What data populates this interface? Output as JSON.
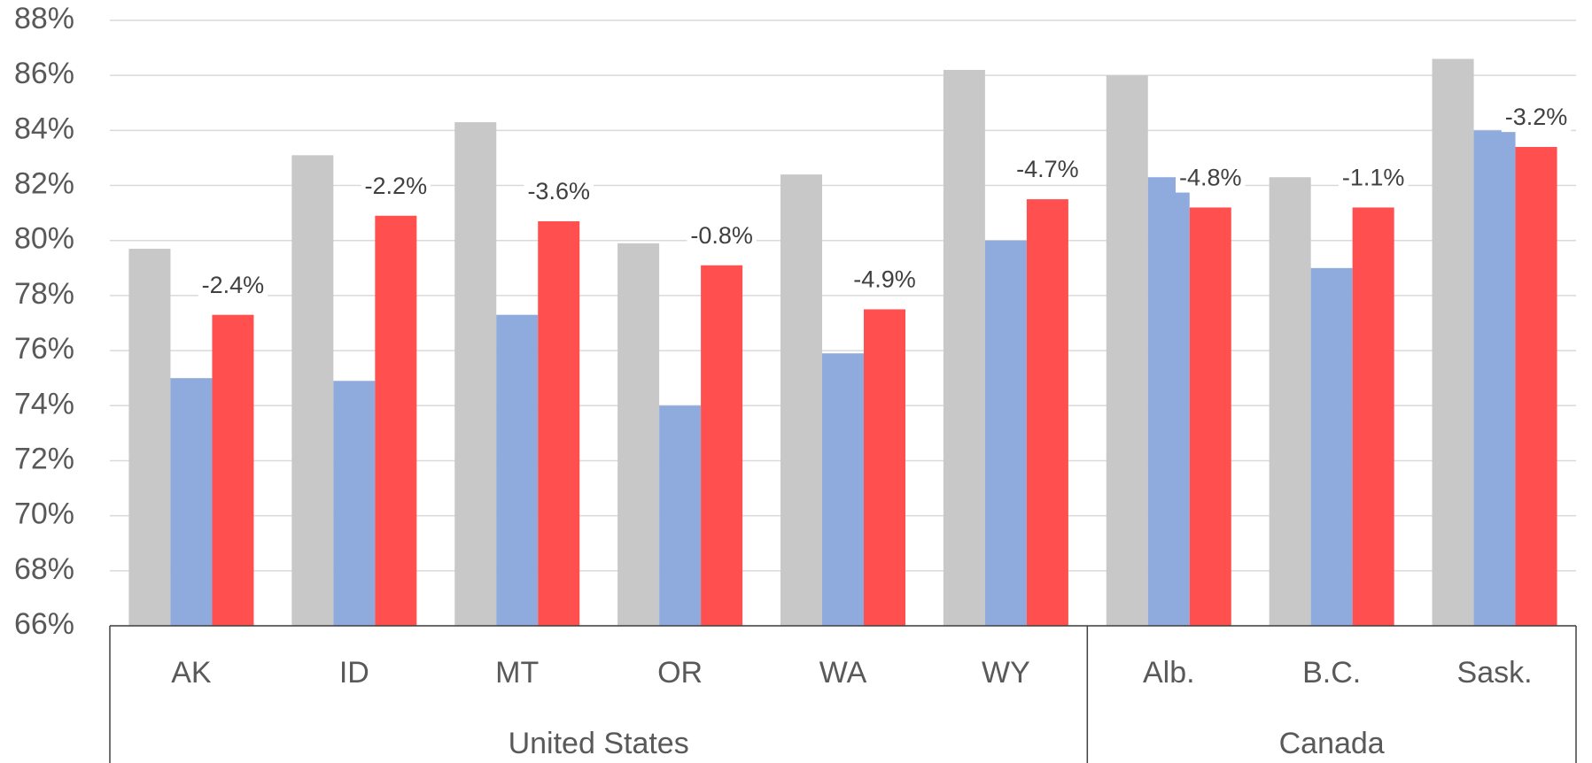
{
  "chart_data": {
    "type": "bar",
    "categories": [
      "AK",
      "ID",
      "MT",
      "OR",
      "WA",
      "WY",
      "Alb.",
      "B.C.",
      "Sask."
    ],
    "groups": [
      {
        "label": "United States",
        "count": 6
      },
      {
        "label": "Canada",
        "count": 3
      }
    ],
    "series": [
      {
        "color": "#c8c8c8",
        "values": [
          79.7,
          83.1,
          84.3,
          79.9,
          82.4,
          86.2,
          86.0,
          82.3,
          86.6
        ]
      },
      {
        "color": "#8faadc",
        "values": [
          75.0,
          74.9,
          77.3,
          74.0,
          75.9,
          80.0,
          82.3,
          79.0,
          84.0
        ]
      },
      {
        "color": "#ff4f4f",
        "values": [
          77.3,
          80.9,
          80.7,
          79.1,
          77.5,
          81.5,
          81.2,
          81.2,
          83.4
        ]
      }
    ],
    "annotations": [
      "-2.4%",
      "-2.2%",
      "-3.6%",
      "-0.8%",
      "-4.9%",
      "-4.7%",
      "-4.8%",
      "-1.1%",
      "-3.2%"
    ],
    "ylim": [
      66,
      88
    ],
    "yticks": [
      {
        "value": 66,
        "label": "66%"
      },
      {
        "value": 68,
        "label": "68%"
      },
      {
        "value": 70,
        "label": "70%"
      },
      {
        "value": 72,
        "label": "72%"
      },
      {
        "value": 74,
        "label": "74%"
      },
      {
        "value": 76,
        "label": "76%"
      },
      {
        "value": 78,
        "label": "78%"
      },
      {
        "value": 80,
        "label": "80%"
      },
      {
        "value": 82,
        "label": "82%"
      },
      {
        "value": 84,
        "label": "84%"
      },
      {
        "value": 86,
        "label": "86%"
      },
      {
        "value": 88,
        "label": "88%"
      }
    ],
    "grid": true
  }
}
